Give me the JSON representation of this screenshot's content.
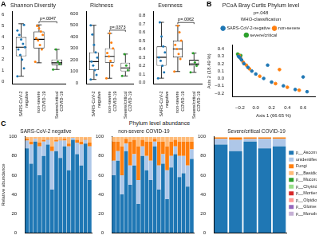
{
  "chart_data": [
    {
      "type": "box",
      "panel_label": "A",
      "title": "Shannon Diversity",
      "categories": [
        "SARS-CoV-2\nnegative",
        "non-severe\nCOVID-19",
        "Severe/critical\nCOVID-19"
      ],
      "colors": [
        "#1f77b4",
        "#ff7f0e",
        "#2ca02c"
      ],
      "ylim": [
        -0.2,
        6.3
      ],
      "yticks": [
        0,
        1,
        2,
        3,
        4,
        5,
        6
      ],
      "grid": false,
      "box": {
        "low": [
          0.5,
          1.7,
          1.1
        ],
        "q1": [
          2.3,
          3.0,
          1.5
        ],
        "median": [
          3.1,
          3.8,
          1.7
        ],
        "q3": [
          4.0,
          4.5,
          2.0
        ],
        "high": [
          5.2,
          5.1,
          2.9
        ]
      },
      "points": [
        [
          0.5,
          1.2,
          2.0,
          2.4,
          2.9,
          3.1,
          3.4,
          3.8,
          4.2,
          4.6,
          5.1
        ],
        [
          1.8,
          2.9,
          3.3,
          3.7,
          3.9,
          4.2,
          4.5,
          4.8,
          5.0
        ],
        [
          1.1,
          1.6,
          1.8,
          2.9
        ]
      ],
      "annotations": [
        {
          "text": "p=.0047",
          "between": [
            "non-severe\nCOVID-19",
            "Severe/critical\nCOVID-19"
          ]
        }
      ]
    },
    {
      "type": "box",
      "title": "Richness",
      "categories": [
        "SARS-CoV-2\nnegative",
        "non-severe\nCOVID-19",
        "Severe/critical\nCOVID-19"
      ],
      "colors": [
        "#1f77b4",
        "#ff7f0e",
        "#2ca02c"
      ],
      "ylim": [
        -10,
        620
      ],
      "yticks": [
        0,
        100,
        200,
        300,
        400,
        500,
        600
      ],
      "grid": false,
      "box": {
        "low": [
          30,
          40,
          60
        ],
        "q1": [
          110,
          175,
          100
        ],
        "median": [
          185,
          230,
          130
        ],
        "q3": [
          265,
          300,
          175
        ],
        "high": [
          500,
          430,
          250
        ]
      },
      "points": [
        [
          30,
          70,
          110,
          150,
          185,
          220,
          265,
          330,
          420,
          500
        ],
        [
          40,
          150,
          190,
          230,
          260,
          300,
          350,
          430
        ],
        [
          60,
          110,
          150,
          250
        ]
      ],
      "annotations": [
        {
          "text": "p=.0373",
          "between": [
            "non-severe\nCOVID-19",
            "Severe/critical\nCOVID-19"
          ]
        }
      ]
    },
    {
      "type": "box",
      "title": "Evenness",
      "categories": [
        "SARS-CoV-2\nnegative",
        "non-severe\nCOVID-19",
        "Severe/critical\nCOVID-19"
      ],
      "colors": [
        "#1f77b4",
        "#ff7f0e",
        "#2ca02c"
      ],
      "ylim": [
        -0.02,
        0.85
      ],
      "yticks": [
        {
          "value": 0,
          "label": "0.0"
        },
        0.1,
        0.2,
        0.3,
        0.4,
        0.5,
        0.6,
        0.7,
        0.8
      ],
      "grid": false,
      "box": {
        "low": [
          0.05,
          0.13,
          0.12
        ],
        "q1": [
          0.2,
          0.3,
          0.2
        ],
        "median": [
          0.3,
          0.4,
          0.22
        ],
        "q3": [
          0.43,
          0.5,
          0.27
        ],
        "high": [
          0.72,
          0.68,
          0.35
        ]
      },
      "points": [
        [
          0.05,
          0.12,
          0.2,
          0.26,
          0.3,
          0.36,
          0.43,
          0.55,
          0.72
        ],
        [
          0.13,
          0.28,
          0.34,
          0.4,
          0.45,
          0.5,
          0.6,
          0.68
        ],
        [
          0.12,
          0.2,
          0.24,
          0.35
        ]
      ],
      "annotations": [
        {
          "text": "p=.0062",
          "between": [
            "non-severe\nCOVID-19",
            "Severe/critical\nCOVID-19"
          ]
        }
      ]
    },
    {
      "type": "scatter",
      "panel_label": "B",
      "title": "PCoA Bray Curtis Phylum level",
      "annotations": [
        {
          "text": "p=.048"
        }
      ],
      "xlabel": "Axis 1 (66.65 %)",
      "ylabel": "Axis 2 (18.49 %)",
      "xlim": [
        -0.3,
        0.75
      ],
      "xticks": [
        {
          "value": -0.2,
          "label": "−0.2"
        },
        {
          "value": 0,
          "label": "0.0"
        },
        0.2,
        0.4,
        0.6
      ],
      "ylim": [
        -0.25,
        0.45
      ],
      "yticks": [
        {
          "value": -0.2,
          "label": "−0.2"
        },
        {
          "value": -0.1,
          "label": "−0.1"
        },
        {
          "value": 0,
          "label": "0.0"
        },
        0.1,
        0.2,
        0.3,
        0.4
      ],
      "grid": false,
      "legend": "top",
      "legend_title": "WHO-classification",
      "series": [
        {
          "name": "SARS-CoV-2-negative",
          "color": "#1f77b4",
          "x": [
            -0.22,
            -0.2,
            -0.18,
            -0.15,
            -0.1,
            -0.05,
            0.0,
            0.1,
            0.2,
            0.35,
            0.5,
            0.65,
            0.15,
            0.6
          ],
          "y": [
            0.3,
            0.28,
            0.25,
            0.2,
            0.15,
            0.1,
            0.06,
            0.0,
            -0.05,
            -0.1,
            -0.15,
            -0.18,
            0.18,
            0.02
          ]
        },
        {
          "name": "non-severe",
          "color": "#ff7f0e",
          "x": [
            -0.21,
            -0.19,
            -0.12,
            -0.08,
            0.05,
            0.25,
            0.4,
            0.55,
            0.3,
            -0.16
          ],
          "y": [
            0.31,
            0.27,
            0.18,
            0.13,
            0.03,
            -0.07,
            -0.12,
            -0.16,
            0.12,
            0.22
          ]
        },
        {
          "name": "severe/critical",
          "color": "#2ca02c",
          "x": [
            -0.23,
            -0.22,
            -0.2,
            -0.21,
            -0.19
          ],
          "y": [
            0.33,
            0.32,
            0.3,
            0.29,
            0.31
          ]
        }
      ]
    },
    {
      "type": "bar",
      "panel_label": "C",
      "title": "Phylum level abundance",
      "ylabel": "Relative abundance",
      "stacked": true,
      "grid": false,
      "legend": "right",
      "tick_labels": "y",
      "ylim": [
        0,
        100
      ],
      "yticks": [
        0,
        20,
        40,
        60,
        80,
        100
      ],
      "groups": [
        {
          "title": "SARS-CoV-2 negative",
          "categories": [
            null,
            null,
            null,
            null,
            null,
            null,
            null,
            null,
            null,
            null,
            null,
            null,
            null,
            null,
            null,
            null
          ]
        },
        {
          "title": "non-severe COVID-19",
          "categories": [
            null,
            null,
            null,
            null,
            null,
            null,
            null,
            null,
            null,
            null,
            null,
            null,
            null,
            null,
            null,
            null,
            null,
            null,
            null,
            null
          ]
        },
        {
          "title": "Severe/critical COVID-19",
          "categories": [
            null,
            null,
            null,
            null,
            null
          ]
        }
      ],
      "series": [
        {
          "name": "p__Ascomycota",
          "color": "#1f77b4",
          "values": [
            [
              88,
              72,
              95,
              60,
              80,
              92,
              45,
              85,
              78,
              90,
              65,
              97,
              82,
              70,
              93,
              55
            ],
            [
              60,
              75,
              40,
              85,
              50,
              70,
              30,
              80,
              65,
              55,
              90,
              45,
              72,
              35,
              68,
              82,
              58,
              62,
              48,
              77
            ],
            [
              92,
              85,
              95,
              88,
              90
            ]
          ]
        },
        {
          "name": "unidentified",
          "color": "#aec7e8",
          "values": [
            [
              8,
              20,
              3,
              30,
              15,
              5,
              40,
              10,
              18,
              6,
              25,
              2,
              12,
              22,
              4,
              35
            ],
            [
              15,
              10,
              20,
              8,
              20,
              12,
              25,
              10,
              15,
              20,
              5,
              25,
              10,
              30,
              12,
              8,
              22,
              18,
              22,
              10
            ],
            [
              6,
              12,
              3,
              10,
              8
            ]
          ]
        },
        {
          "name": "Fungi",
          "color": "#ff7f0e",
          "values": [
            [
              2,
              3,
              0,
              4,
              2,
              1,
              5,
              2,
              1,
              2,
              3,
              0,
              3,
              3,
              1,
              4
            ],
            [
              20,
              10,
              30,
              5,
              25,
              15,
              35,
              7,
              15,
              20,
              3,
              25,
              13,
              25,
              15,
              7,
              15,
              15,
              25,
              8
            ],
            [
              1,
              2,
              1,
              1,
              1
            ]
          ]
        },
        {
          "name": "p__Basidiomycota",
          "color": "#ffbb78",
          "values": [
            [
              2,
              5,
              2,
              6,
              3,
              2,
              10,
              3,
              3,
              2,
              7,
              1,
              3,
              5,
              2,
              6
            ],
            [
              5,
              5,
              10,
              2,
              5,
              3,
              10,
              3,
              5,
              5,
              2,
              5,
              5,
              10,
              5,
              3,
              5,
              5,
              5,
              5
            ],
            [
              1,
              1,
              1,
              1,
              1
            ]
          ]
        },
        {
          "name": "p__Mucoromycota",
          "color": "#2ca02c",
          "values": [
            [
              0,
              0,
              0,
              0,
              0,
              0,
              0,
              0,
              0,
              0,
              0,
              0,
              0,
              0,
              0,
              0
            ],
            [
              0,
              0,
              0,
              0,
              0,
              0,
              0,
              0,
              0,
              0,
              0,
              0,
              0,
              0,
              0,
              0,
              0,
              0,
              0,
              0
            ],
            [
              0,
              0,
              0,
              0,
              0
            ]
          ]
        },
        {
          "name": "p__Chytridiomycota",
          "color": "#98df8a",
          "values": [
            [
              0,
              0,
              0,
              0,
              0,
              0,
              0,
              0,
              0,
              0,
              0,
              0,
              0,
              0,
              0,
              0
            ],
            [
              0,
              0,
              0,
              0,
              0,
              0,
              0,
              0,
              0,
              0,
              0,
              0,
              0,
              0,
              0,
              0,
              0,
              0,
              0,
              0
            ],
            [
              0,
              0,
              0,
              0,
              0
            ]
          ]
        },
        {
          "name": "p__Mortierellomycota",
          "color": "#d62728",
          "values": [
            [
              0,
              0,
              0,
              0,
              0,
              0,
              0,
              0,
              0,
              0,
              0,
              0,
              0,
              0,
              0,
              0
            ],
            [
              0,
              0,
              0,
              0,
              0,
              0,
              0,
              0,
              0,
              0,
              0,
              0,
              0,
              0,
              0,
              0,
              0,
              0,
              0,
              0
            ],
            [
              0,
              0,
              0,
              0,
              0
            ]
          ]
        },
        {
          "name": "p__Olpidiomycota",
          "color": "#ff9896",
          "values": [
            [
              0,
              0,
              0,
              0,
              0,
              0,
              0,
              0,
              0,
              0,
              0,
              0,
              0,
              0,
              0,
              0
            ],
            [
              0,
              0,
              0,
              0,
              0,
              0,
              0,
              0,
              0,
              0,
              0,
              0,
              0,
              0,
              0,
              0,
              0,
              0,
              0,
              0
            ],
            [
              0,
              0,
              0,
              0,
              0
            ]
          ]
        },
        {
          "name": "p__Glomeromycota",
          "color": "#9467bd",
          "values": [
            [
              0,
              0,
              0,
              0,
              0,
              0,
              0,
              0,
              0,
              0,
              0,
              0,
              0,
              0,
              0,
              0
            ],
            [
              0,
              0,
              0,
              0,
              0,
              0,
              0,
              0,
              0,
              0,
              0,
              0,
              0,
              0,
              0,
              0,
              0,
              0,
              0,
              0
            ],
            [
              0,
              0,
              0,
              0,
              0
            ]
          ]
        },
        {
          "name": "p__Monoblepharomycota",
          "color": "#c5b0d5",
          "values": [
            [
              0,
              0,
              0,
              0,
              0,
              0,
              0,
              0,
              0,
              0,
              0,
              0,
              0,
              0,
              0,
              0
            ],
            [
              0,
              0,
              0,
              0,
              0,
              0,
              0,
              0,
              0,
              0,
              0,
              0,
              0,
              0,
              0,
              0,
              0,
              0,
              0,
              0
            ],
            [
              0,
              0,
              0,
              0,
              0
            ]
          ]
        }
      ]
    }
  ]
}
